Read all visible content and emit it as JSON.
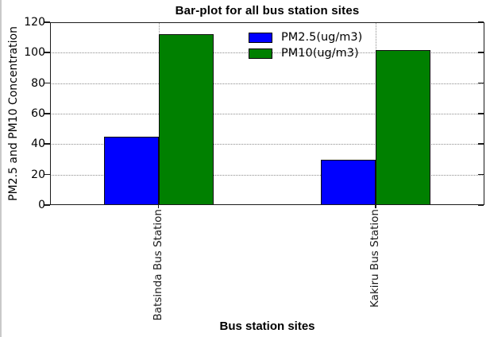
{
  "chart_data": {
    "type": "bar",
    "title": "Bar-plot for all bus station sites",
    "xlabel": "Bus station sites",
    "ylabel": "PM2.5 and PM10 Concentration",
    "categories": [
      "Batsinda Bus Station",
      "Kakiru Bus Station"
    ],
    "series": [
      {
        "name": "PM2.5(ug/m3)",
        "color": "#0000ff",
        "values": [
          45,
          30
        ]
      },
      {
        "name": "PM10(ug/m3)",
        "color": "#008000",
        "values": [
          112,
          102
        ]
      }
    ],
    "ylim": [
      0,
      120
    ],
    "yticks": [
      0,
      20,
      40,
      60,
      80,
      100,
      120
    ],
    "grid": true,
    "grid_style": "dotted",
    "legend_position": "upper center",
    "bar_edge_color": "#000000"
  }
}
